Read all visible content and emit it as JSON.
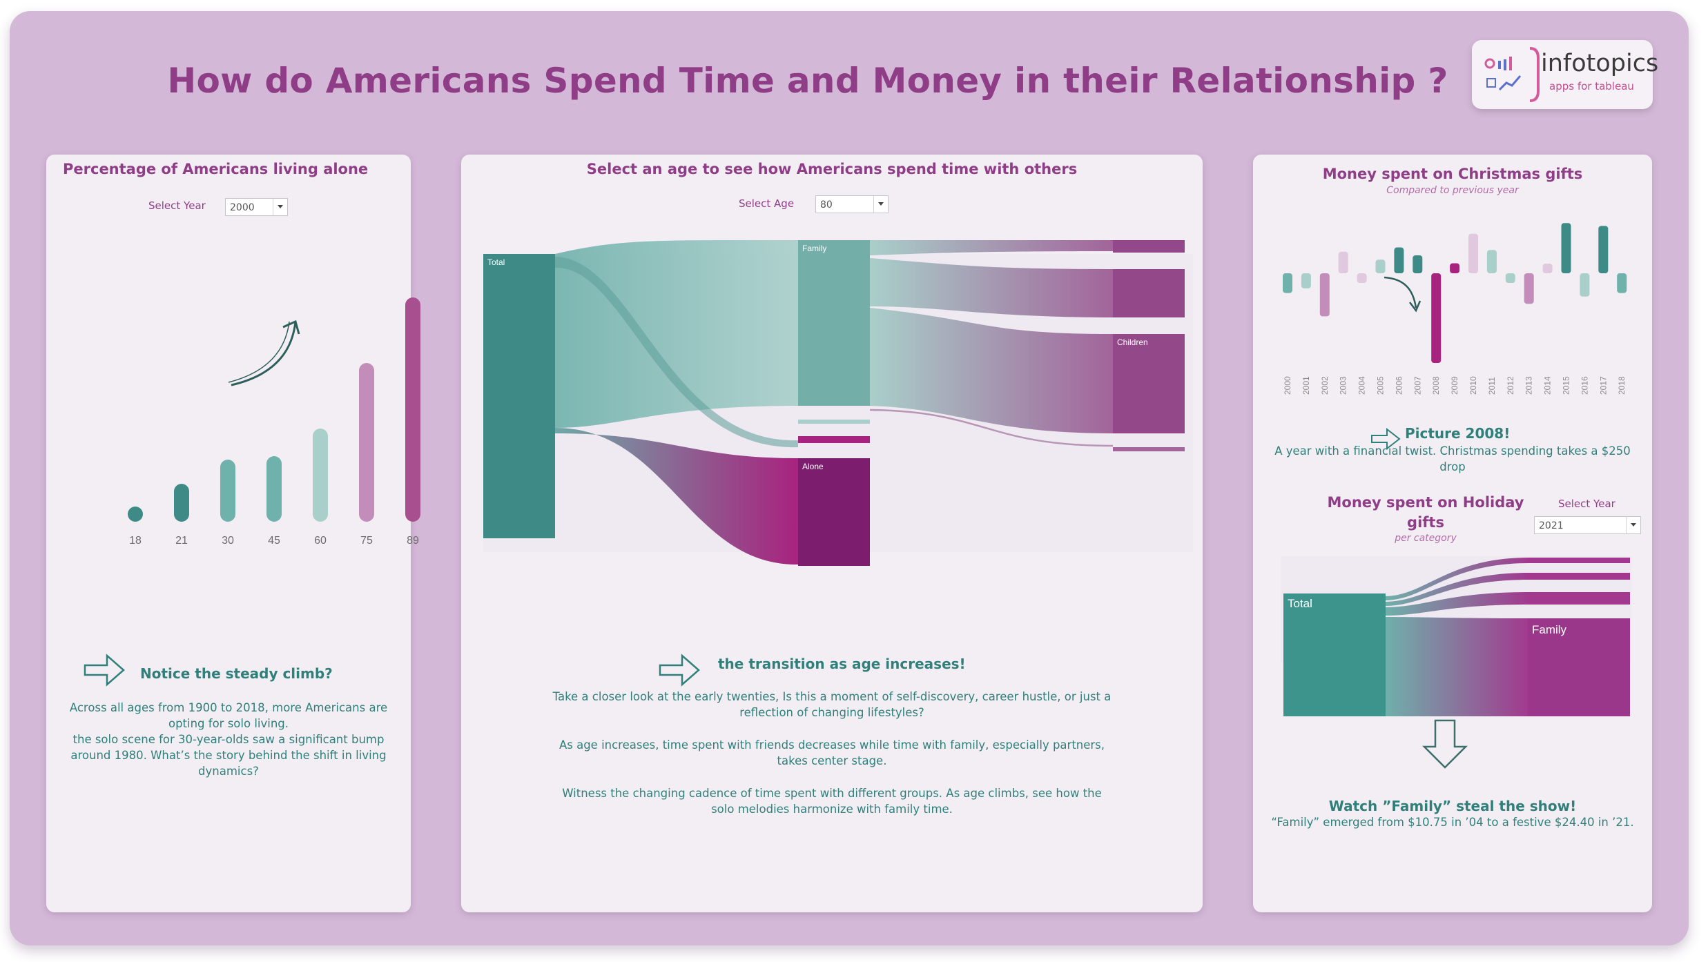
{
  "dashboard": {
    "title": "How do Americans Spend Time and Money in their Relationship ?",
    "logo": {
      "name": "infotopics",
      "subtitle": "apps for tableau"
    }
  },
  "colors": {
    "teal": "#3d8a86",
    "teal_light": "#7fb6b1",
    "purple": "#8e3d86",
    "magenta": "#7d1d6e",
    "pink": "#c28db9"
  },
  "panel_alone": {
    "title": "Percentage of Americans living alone",
    "year_label": "Select Year",
    "year_value": "2000",
    "annotation_title": "Notice the steady climb?",
    "annotation_lines": [
      "Across all ages from 1900 to 2018, more Americans are",
      "opting for solo living.",
      "the solo scene for 30-year-olds saw a significant bump",
      "around 1980. What’s the story behind the shift in living",
      "dynamics?"
    ]
  },
  "panel_time": {
    "title": "Select an age to see how Americans spend time with others",
    "age_label": "Select Age",
    "age_value": "80",
    "nodes": {
      "total": "Total",
      "family": "Family",
      "alone": "Alone",
      "children": "Children"
    },
    "annotation_title": "the transition as age increases!",
    "paragraphs": [
      [
        "Take a closer look at the early twenties, Is this a moment of self-discovery, career hustle, or just a",
        "reflection of changing lifestyles?"
      ],
      [
        "As age increases, time spent with friends decreases while time with family, especially partners,",
        "takes center stage."
      ],
      [
        "Witness the changing cadence of time spent with different groups. As age climbs, see how the",
        "solo melodies harmonize with family time."
      ]
    ]
  },
  "panel_money": {
    "christmas_title": "Money spent on Christmas gifts",
    "christmas_subtitle": "Compared to previous year",
    "picture_title": "Picture 2008!",
    "picture_lines": [
      "A year with a financial twist. Christmas spending takes a $250",
      "drop"
    ],
    "holiday_title_lines": [
      "Money spent on Holiday",
      "gifts"
    ],
    "holiday_subtitle": "per category",
    "year_label": "Select Year",
    "year_value": "2021",
    "holiday_nodes": {
      "total": "Total",
      "family": "Family"
    },
    "watch_title": "Watch ”Family” steal the show!",
    "watch_text": "“Family” emerged from $10.75 in ’04 to a festive $24.40 in ’21."
  },
  "chart_data": [
    {
      "type": "bar",
      "categories": [
        "18",
        "21",
        "30",
        "45",
        "60",
        "75",
        "89"
      ],
      "values": [
        1.5,
        5.5,
        9,
        9.5,
        13.5,
        23,
        32.5
      ],
      "ylim": [
        0,
        34
      ],
      "colors": [
        "#3d8a86",
        "#3d8a86",
        "#6fb1ab",
        "#6fb1ab",
        "#a9cfca",
        "#c28db9",
        "#a8508f"
      ]
    },
    {
      "type": "bar",
      "categories": [
        "2000",
        "2001",
        "2002",
        "2003",
        "2004",
        "2005",
        "2006",
        "2007",
        "2008",
        "2009",
        "2010",
        "2011",
        "2012",
        "2013",
        "2014",
        "2015",
        "2016",
        "2017",
        "2018"
      ],
      "values": [
        -55,
        -42,
        -120,
        60,
        -15,
        38,
        72,
        50,
        -250,
        28,
        110,
        65,
        -15,
        -85,
        25,
        140,
        -65,
        132,
        -55
      ],
      "colors": [
        "#6fb1ab",
        "#a9cfca",
        "#c28db9",
        "#e0c8de",
        "#e0c8de",
        "#a9cfca",
        "#3d8a86",
        "#3d8a86",
        "#a8227f",
        "#a8227f",
        "#e0c8de",
        "#a9cfca",
        "#a9cfca",
        "#c28db9",
        "#e0c8de",
        "#3d8a86",
        "#a9cfca",
        "#3d8a86",
        "#6fb1ab"
      ]
    }
  ]
}
